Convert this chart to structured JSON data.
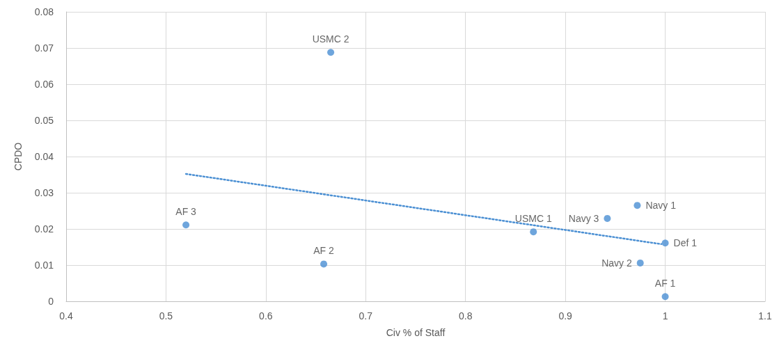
{
  "chart_data": {
    "type": "scatter",
    "xlabel": "Civ % of Staff",
    "ylabel": "CPDO",
    "xlim": [
      0.4,
      1.1
    ],
    "xticks": [
      0.4,
      0.5,
      0.6,
      0.7,
      0.8,
      0.9,
      1,
      1.1
    ],
    "ylim": [
      0,
      0.08
    ],
    "yticks": [
      0,
      0.01,
      0.02,
      0.03,
      0.04,
      0.05,
      0.06,
      0.07,
      0.08
    ],
    "grid": true,
    "marker": "circle",
    "series": [
      {
        "color": "#4a8fd3",
        "x": [
          0.665,
          0.52,
          0.658,
          0.868,
          0.942,
          0.972,
          1.0,
          0.975,
          1.0
        ],
        "values": [
          0.0688,
          0.0211,
          0.0103,
          0.0192,
          0.0229,
          0.0265,
          0.0161,
          0.0106,
          0.0013
        ]
      },
      {
        "type": "line",
        "color": "#4a8fd3",
        "line_style": "dotted",
        "marker": "none",
        "x": [
          0.52,
          0.996
        ],
        "values": [
          0.0352,
          0.0158
        ]
      }
    ],
    "annotations": [
      {
        "text": "USMC 2",
        "x": 0.665,
        "y": 0.0688
      },
      {
        "text": "AF 3",
        "x": 0.52,
        "y": 0.0211
      },
      {
        "text": "AF 2",
        "x": 0.658,
        "y": 0.0103
      },
      {
        "text": "USMC 1",
        "x": 0.868,
        "y": 0.0192
      },
      {
        "text": "Navy 3",
        "x": 0.942,
        "y": 0.0229
      },
      {
        "text": "Navy 1",
        "x": 0.972,
        "y": 0.0265
      },
      {
        "text": "Def 1",
        "x": 1.0,
        "y": 0.0161
      },
      {
        "text": "Navy 2",
        "x": 0.975,
        "y": 0.0106
      },
      {
        "text": "AF 1",
        "x": 1.0,
        "y": 0.0013
      }
    ]
  }
}
